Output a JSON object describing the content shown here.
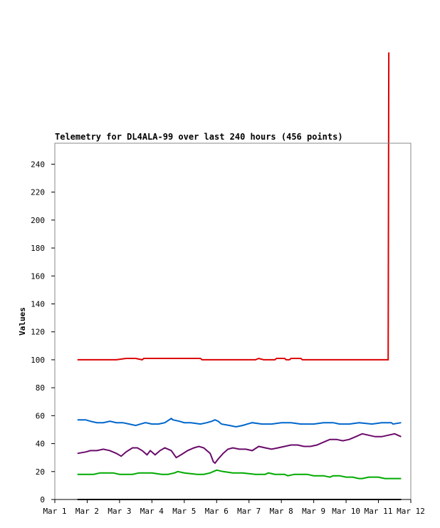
{
  "chart_data": {
    "type": "line",
    "title": "Telemetry for DL4ALA-99 over last 240 hours (456 points)",
    "xlabel": "",
    "ylabel": "Values",
    "xlim": [
      1,
      12
    ],
    "ylim": [
      0,
      255
    ],
    "x_ticks": [
      {
        "value": 1,
        "label": "Mar 1"
      },
      {
        "value": 2,
        "label": "Mar 2"
      },
      {
        "value": 3,
        "label": "Mar 3"
      },
      {
        "value": 4,
        "label": "Mar 4"
      },
      {
        "value": 5,
        "label": "Mar 5"
      },
      {
        "value": 6,
        "label": "Mar 6"
      },
      {
        "value": 7,
        "label": "Mar 7"
      },
      {
        "value": 8,
        "label": "Mar 8"
      },
      {
        "value": 9,
        "label": "Mar 9"
      },
      {
        "value": 10,
        "label": "Mar 10"
      },
      {
        "value": 11,
        "label": "Mar 11"
      },
      {
        "value": 12,
        "label": "Mar 12"
      }
    ],
    "y_ticks": [
      {
        "value": 0,
        "label": "0"
      },
      {
        "value": 20,
        "label": "20"
      },
      {
        "value": 40,
        "label": "40"
      },
      {
        "value": 60,
        "label": "60"
      },
      {
        "value": 80,
        "label": "80"
      },
      {
        "value": 100,
        "label": "100"
      },
      {
        "value": 120,
        "label": "120"
      },
      {
        "value": 140,
        "label": "140"
      },
      {
        "value": 160,
        "label": "160"
      },
      {
        "value": 180,
        "label": "180"
      },
      {
        "value": 200,
        "label": "200"
      },
      {
        "value": 220,
        "label": "220"
      },
      {
        "value": 240,
        "label": "240"
      }
    ],
    "grid": false,
    "legend": "none",
    "series": [
      {
        "color": "#dd0000",
        "x": [
          1.7,
          2.2,
          2.6,
          2.9,
          3.2,
          3.5,
          3.7,
          3.75,
          4.0,
          4.4,
          4.8,
          5.2,
          5.5,
          5.55,
          5.9,
          6.3,
          6.6,
          6.9,
          7.2,
          7.3,
          7.45,
          7.8,
          7.85,
          8.1,
          8.15,
          8.25,
          8.3,
          8.6,
          8.65,
          9.0,
          9.5,
          10.0,
          10.5,
          11.0,
          11.3,
          11.32
        ],
        "y": [
          100,
          100,
          100,
          100,
          101,
          101,
          100,
          101,
          101,
          101,
          101,
          101,
          101,
          100,
          100,
          100,
          100,
          100,
          100,
          101,
          100,
          100,
          101,
          101,
          100,
          100,
          101,
          101,
          100,
          100,
          100,
          100,
          100,
          100,
          100,
          320
        ]
      },
      {
        "color": "#0066cc",
        "x": [
          1.7,
          1.95,
          2.1,
          2.3,
          2.5,
          2.7,
          2.9,
          3.1,
          3.3,
          3.5,
          3.65,
          3.8,
          4.0,
          4.2,
          4.4,
          4.6,
          4.65,
          4.85,
          5.0,
          5.2,
          5.5,
          5.7,
          5.85,
          5.95,
          6.05,
          6.15,
          6.4,
          6.6,
          6.8,
          6.95,
          7.1,
          7.4,
          7.7,
          8.0,
          8.3,
          8.6,
          9.0,
          9.3,
          9.6,
          9.8,
          10.1,
          10.4,
          10.8,
          11.1,
          11.4,
          11.45,
          11.7
        ],
        "y": [
          57,
          57,
          56,
          55,
          55,
          56,
          55,
          55,
          54,
          53,
          54,
          55,
          54,
          54,
          55,
          58,
          57,
          56,
          55,
          55,
          54,
          55,
          56,
          57,
          56,
          54,
          53,
          52,
          53,
          54,
          55,
          54,
          54,
          55,
          55,
          54,
          54,
          55,
          55,
          54,
          54,
          55,
          54,
          55,
          55,
          54,
          55
        ]
      },
      {
        "color": "#6a0a6a",
        "x": [
          1.7,
          1.95,
          2.1,
          2.3,
          2.5,
          2.7,
          2.9,
          3.05,
          3.2,
          3.4,
          3.55,
          3.7,
          3.85,
          3.95,
          4.1,
          4.25,
          4.4,
          4.5,
          4.6,
          4.75,
          4.9,
          5.1,
          5.3,
          5.45,
          5.6,
          5.7,
          5.8,
          5.85,
          5.9,
          5.95,
          6.05,
          6.2,
          6.35,
          6.5,
          6.7,
          6.9,
          7.1,
          7.3,
          7.5,
          7.7,
          7.9,
          8.1,
          8.3,
          8.5,
          8.7,
          8.9,
          9.1,
          9.3,
          9.5,
          9.7,
          9.9,
          10.1,
          10.3,
          10.5,
          10.7,
          10.9,
          11.1,
          11.3,
          11.5,
          11.7
        ],
        "y": [
          33,
          34,
          35,
          35,
          36,
          35,
          33,
          31,
          34,
          37,
          37,
          35,
          32,
          35,
          32,
          35,
          37,
          36,
          35,
          30,
          32,
          35,
          37,
          38,
          37,
          35,
          33,
          30,
          27,
          26,
          29,
          33,
          36,
          37,
          36,
          36,
          35,
          38,
          37,
          36,
          37,
          38,
          39,
          39,
          38,
          38,
          39,
          41,
          43,
          43,
          42,
          43,
          45,
          47,
          46,
          45,
          45,
          46,
          47,
          45
        ]
      },
      {
        "color": "#00aa00",
        "x": [
          1.7,
          2.2,
          2.4,
          2.8,
          3.0,
          3.4,
          3.6,
          4.0,
          4.3,
          4.5,
          4.7,
          4.8,
          5.0,
          5.4,
          5.6,
          5.8,
          6.0,
          6.2,
          6.5,
          6.8,
          7.2,
          7.5,
          7.6,
          7.8,
          8.1,
          8.2,
          8.4,
          8.8,
          9.0,
          9.3,
          9.5,
          9.6,
          9.8,
          10.0,
          10.2,
          10.4,
          10.5,
          10.7,
          11.0,
          11.2,
          11.5,
          11.7
        ],
        "y": [
          18,
          18,
          19,
          19,
          18,
          18,
          19,
          19,
          18,
          18,
          19,
          20,
          19,
          18,
          18,
          19,
          21,
          20,
          19,
          19,
          18,
          18,
          19,
          18,
          18,
          17,
          18,
          18,
          17,
          17,
          16,
          17,
          17,
          16,
          16,
          15,
          15,
          16,
          16,
          15,
          15,
          15
        ]
      },
      {
        "color": "#000000",
        "x": [
          1.7,
          11.7
        ],
        "y": [
          0,
          0
        ]
      }
    ]
  }
}
